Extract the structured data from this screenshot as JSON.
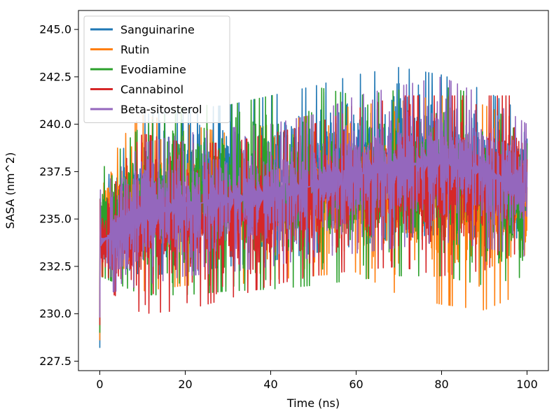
{
  "chart_data": {
    "type": "line",
    "title": "",
    "xlabel": "Time (ns)",
    "ylabel": "SASA (nm^2)",
    "xlim": [
      -5,
      105
    ],
    "ylim": [
      227,
      246
    ],
    "xticks": [
      "0",
      "20",
      "40",
      "60",
      "80",
      "100"
    ],
    "yticks": [
      "227.5",
      "230.0",
      "232.5",
      "235.0",
      "237.5",
      "240.0",
      "242.5",
      "245.0"
    ],
    "legend_position": "top-left",
    "grid": false,
    "series": [
      {
        "name": "Sanguinarine",
        "color": "#1f77b4",
        "envelope": {
          "x": [
            0,
            10,
            20,
            30,
            40,
            50,
            60,
            70,
            80,
            90,
            100
          ],
          "low": [
            233.0,
            232.0,
            232.2,
            232.5,
            232.8,
            233.2,
            233.6,
            234.0,
            234.2,
            234.0,
            234.0
          ],
          "high": [
            236.5,
            240.5,
            240.8,
            241.0,
            241.5,
            242.0,
            242.6,
            243.0,
            242.6,
            241.8,
            240.5
          ]
        }
      },
      {
        "name": "Rutin",
        "color": "#ff7f0e",
        "envelope": {
          "x": [
            0,
            10,
            20,
            30,
            40,
            50,
            60,
            70,
            80,
            90,
            100
          ],
          "low": [
            232.0,
            231.2,
            231.5,
            231.5,
            231.8,
            232.0,
            232.2,
            231.0,
            230.5,
            230.2,
            231.2
          ],
          "high": [
            238.0,
            240.5,
            240.0,
            239.5,
            240.0,
            240.5,
            241.0,
            241.2,
            241.5,
            241.0,
            240.0
          ]
        }
      },
      {
        "name": "Evodiamine",
        "color": "#2ca02c",
        "envelope": {
          "x": [
            0,
            10,
            20,
            30,
            40,
            50,
            60,
            70,
            80,
            90,
            100
          ],
          "low": [
            232.0,
            231.0,
            231.0,
            231.2,
            231.3,
            231.5,
            231.8,
            232.0,
            232.0,
            231.5,
            232.0
          ],
          "high": [
            237.5,
            240.0,
            241.0,
            241.0,
            241.5,
            242.0,
            241.5,
            241.8,
            242.0,
            241.5,
            239.0
          ]
        }
      },
      {
        "name": "Cannabinol",
        "color": "#d62728",
        "envelope": {
          "x": [
            0,
            10,
            20,
            30,
            40,
            50,
            60,
            70,
            80,
            90,
            100
          ],
          "low": [
            231.5,
            230.0,
            230.2,
            230.8,
            231.5,
            232.0,
            232.3,
            232.5,
            232.0,
            232.3,
            233.5
          ],
          "high": [
            236.0,
            239.5,
            239.0,
            239.0,
            239.5,
            240.0,
            240.8,
            241.5,
            241.5,
            241.5,
            241.5
          ]
        }
      },
      {
        "name": "Beta-sitosterol",
        "color": "#9467bd",
        "envelope": {
          "x": [
            0,
            10,
            20,
            30,
            40,
            50,
            60,
            70,
            80,
            90,
            100
          ],
          "low": [
            231.0,
            231.5,
            232.0,
            232.2,
            232.5,
            233.0,
            233.2,
            233.5,
            233.8,
            233.5,
            233.0
          ],
          "high": [
            236.5,
            239.0,
            239.5,
            239.8,
            240.0,
            240.5,
            241.5,
            242.0,
            242.5,
            241.5,
            240.0
          ]
        }
      }
    ]
  }
}
